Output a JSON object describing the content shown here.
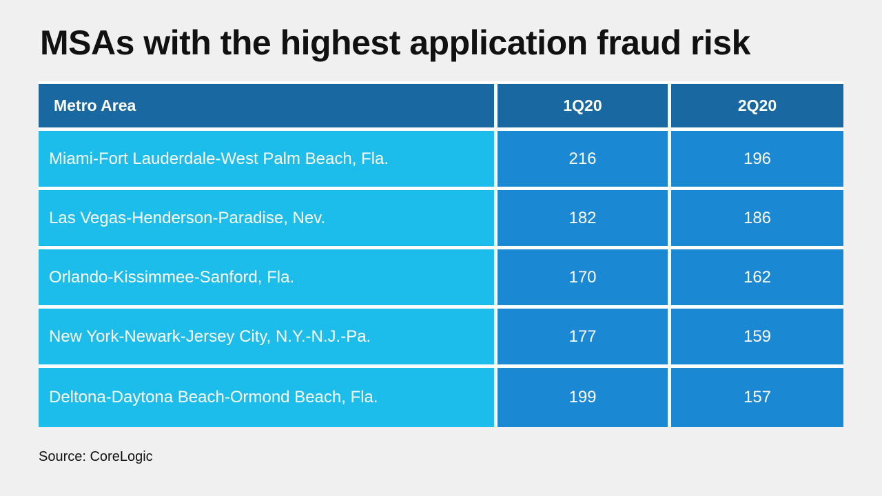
{
  "chart_data": {
    "type": "table",
    "title": "MSAs with the highest application fraud risk",
    "columns": [
      "Metro Area",
      "1Q20",
      "2Q20"
    ],
    "rows": [
      {
        "metro": "Miami-Fort Lauderdale-West Palm Beach, Fla.",
        "q1": 216,
        "q2": 196
      },
      {
        "metro": "Las Vegas-Henderson-Paradise, Nev.",
        "q1": 182,
        "q2": 186
      },
      {
        "metro": "Orlando-Kissimmee-Sanford, Fla.",
        "q1": 170,
        "q2": 162
      },
      {
        "metro": "New York-Newark-Jersey City, N.Y.-N.J.-Pa.",
        "q1": 177,
        "q2": 159
      },
      {
        "metro": "Deltona-Daytona Beach-Ormond Beach, Fla.",
        "q1": 199,
        "q2": 157
      }
    ],
    "source": "Source: CoreLogic",
    "colors": {
      "background": "#eff0ef",
      "header": "#1968a1",
      "metro_cells": "#1dbdeb",
      "value_cells": "#1b88d4",
      "text_light": "#ffffff",
      "text_dark": "#111111"
    }
  }
}
